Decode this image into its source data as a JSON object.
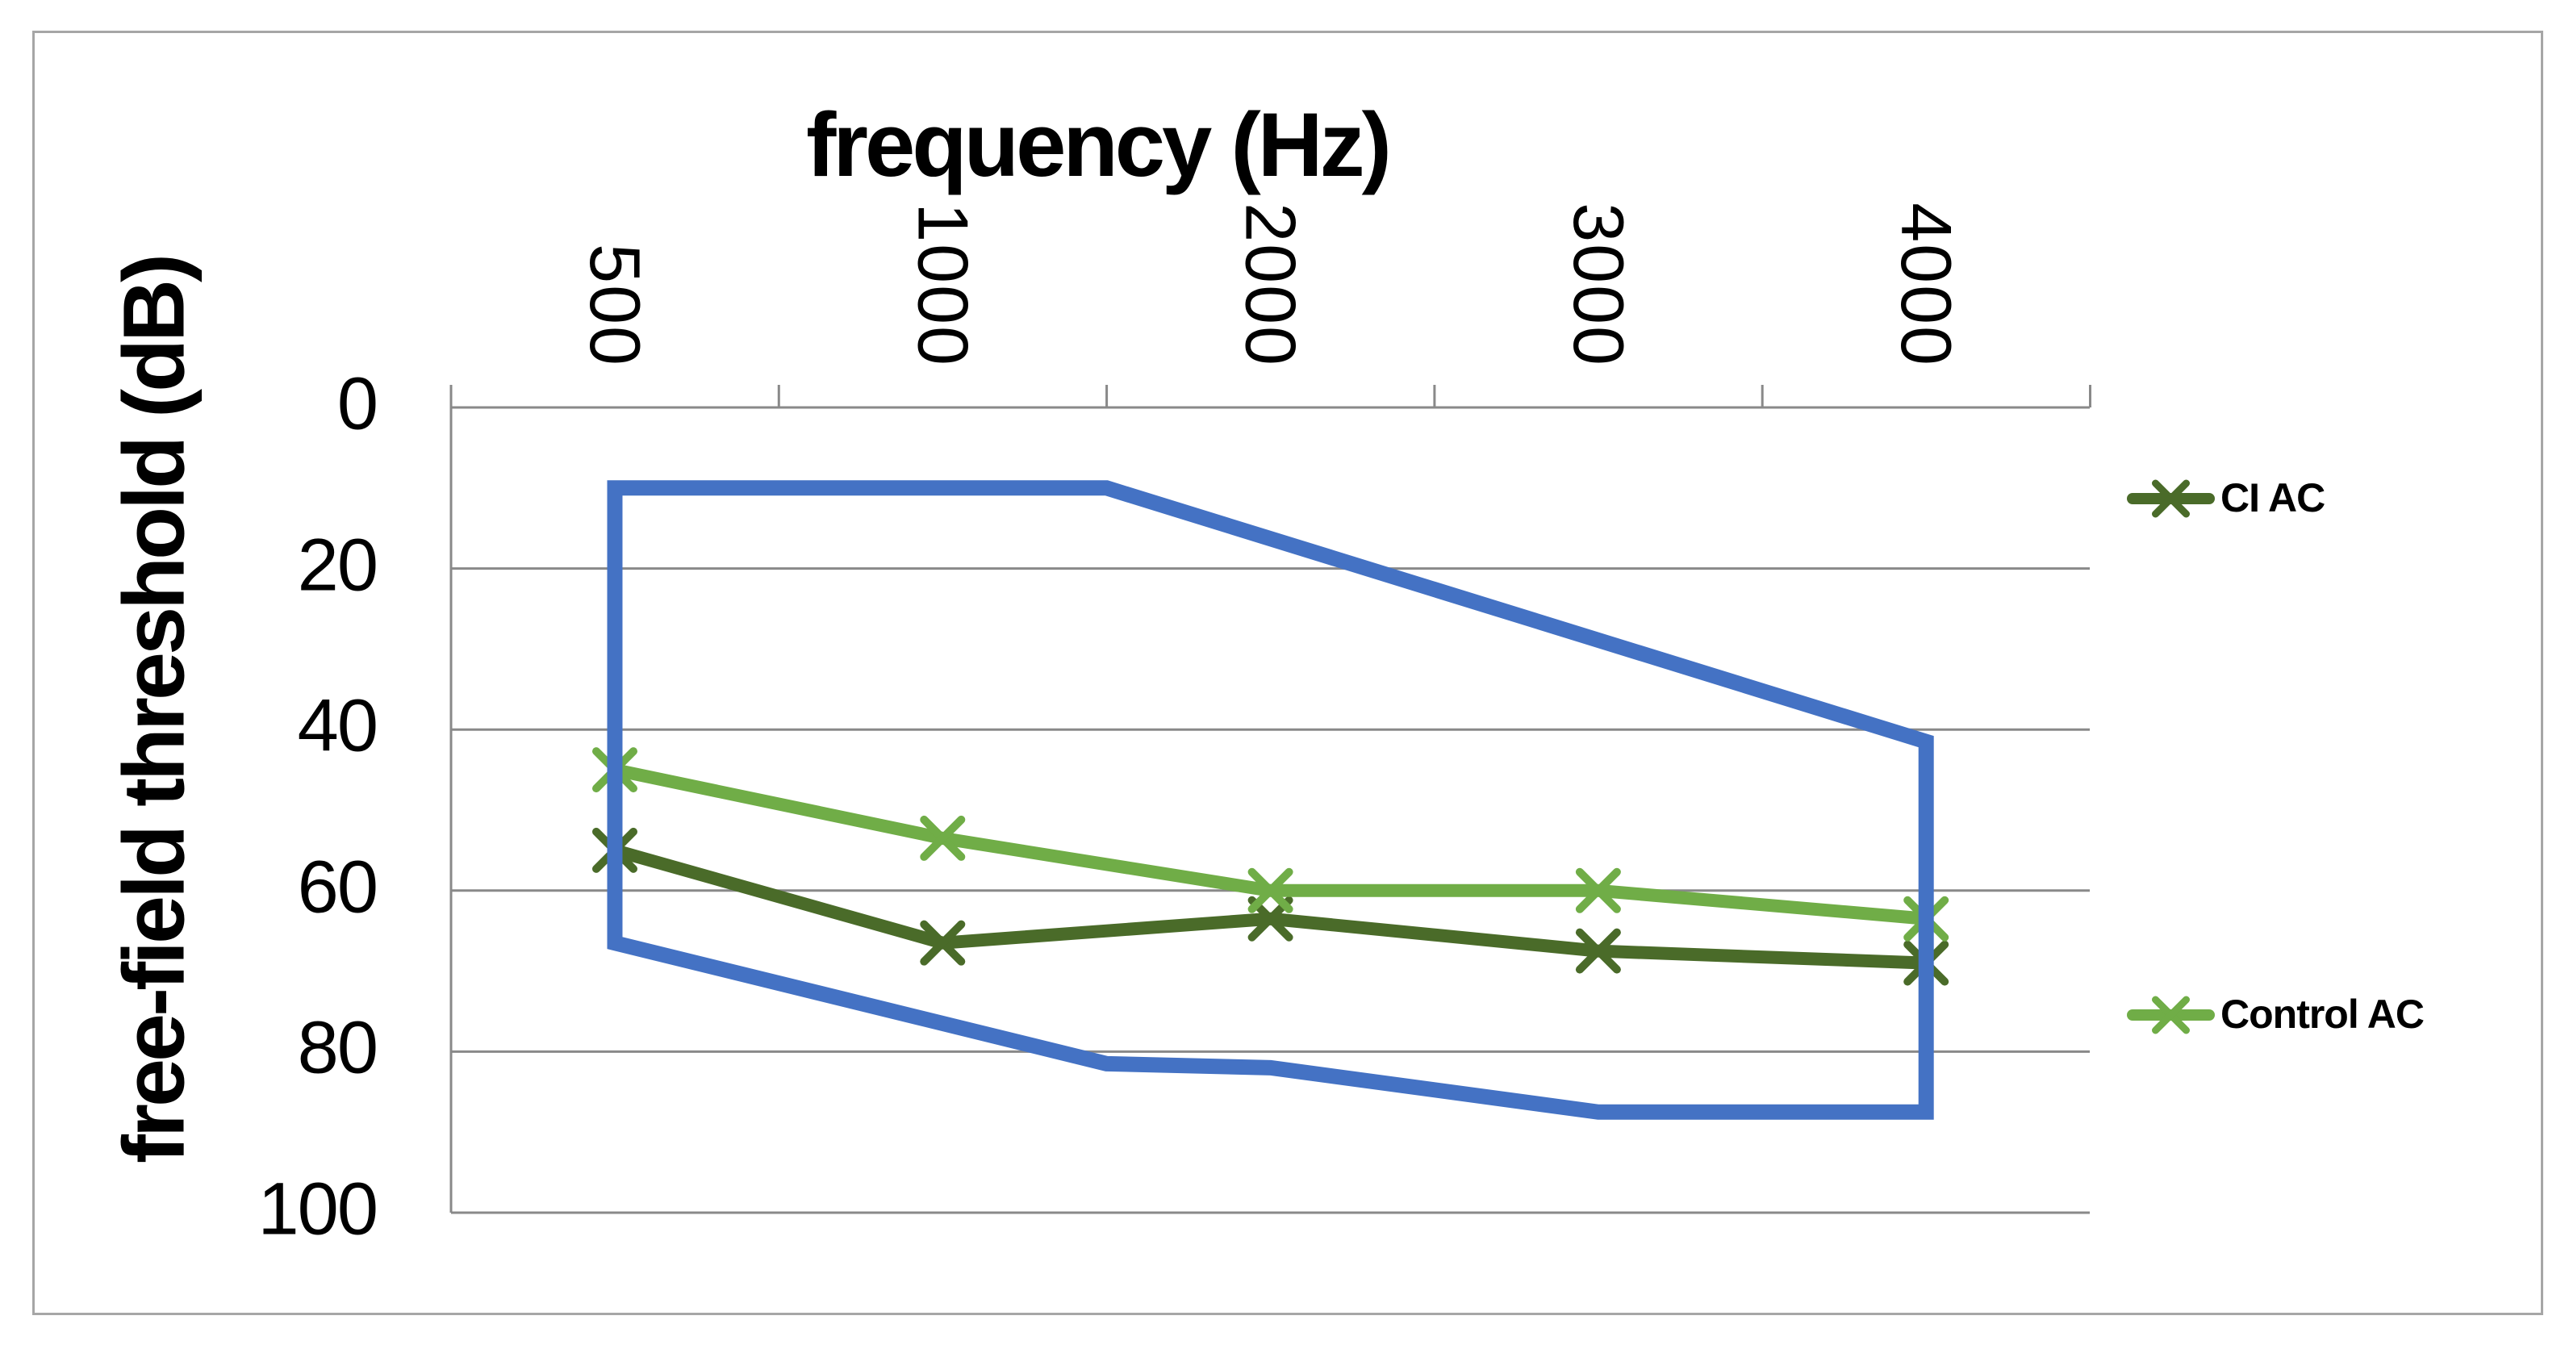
{
  "figure": {
    "title": "frequency (Hz)",
    "y_axis_title": "free-field threshold (dB)"
  },
  "legend": {
    "position": "right",
    "items": [
      {
        "label": "CI AC",
        "color": "#4a6b29",
        "marker": "x"
      },
      {
        "label": "Control AC",
        "color": "#70ad47",
        "marker": "x"
      }
    ]
  },
  "colors": {
    "region_outline": "#4472c4",
    "ci_ac": "#4a6b29",
    "control_ac": "#70ad47",
    "gridline": "#898989",
    "frame_border": "#a6a6a6",
    "text": "#000000"
  },
  "chart_data": {
    "type": "line",
    "title": "frequency (Hz)",
    "xlabel": "frequency (Hz)",
    "ylabel": "free-field threshold (dB)",
    "categories": [
      "500",
      "1000",
      "2000",
      "3000",
      "4000"
    ],
    "x_tick_rotation_deg": 90,
    "y_ticks": [
      "0",
      "20",
      "40",
      "60",
      "80",
      "100"
    ],
    "ylim": [
      0,
      100
    ],
    "y_axis_reversed": true,
    "grid": "horizontal",
    "legend_position": "right",
    "series": [
      {
        "name": "CI AC",
        "color": "#4a6b29",
        "marker": "x",
        "values": [
          55,
          66.5,
          63.5,
          67.5,
          69
        ]
      },
      {
        "name": "Control AC",
        "color": "#70ad47",
        "marker": "x",
        "values": [
          45,
          53.5,
          60,
          60,
          63.5
        ]
      }
    ],
    "reference_region": {
      "name": "blue outlined region (no legend entry)",
      "color": "#4472c4",
      "closed": true,
      "vertices_x_index_db": [
        [
          0,
          10
        ],
        [
          1.5,
          10
        ],
        [
          4,
          41.5
        ],
        [
          4,
          87.5
        ],
        [
          3,
          87.5
        ],
        [
          2,
          82
        ],
        [
          1.5,
          81.5
        ],
        [
          0,
          66.5
        ]
      ]
    }
  }
}
